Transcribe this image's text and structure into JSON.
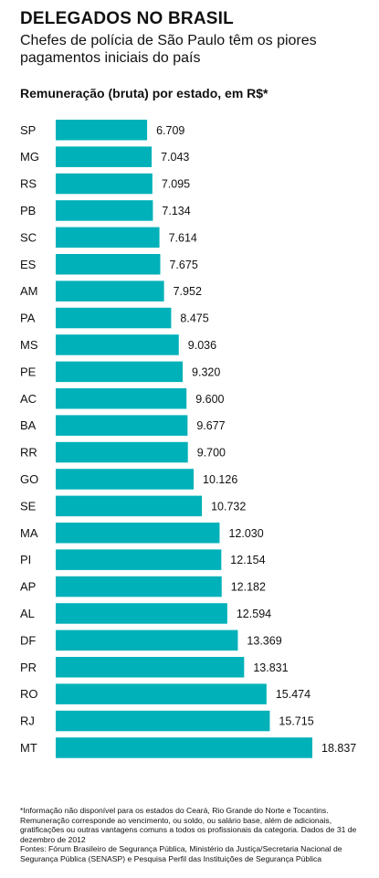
{
  "chart_data": {
    "type": "bar",
    "orientation": "horizontal",
    "title": "DELEGADOS NO BRASIL",
    "subtitle": "Chefes de polícia de São Paulo têm os piores pagamentos iniciais do país",
    "ylabel": "Remuneração (bruta) por estado, em R$*",
    "grid": false,
    "bar_color": "#00b1b9",
    "categories": [
      "SP",
      "MG",
      "RS",
      "PB",
      "SC",
      "ES",
      "AM",
      "PA",
      "MS",
      "PE",
      "AC",
      "BA",
      "RR",
      "GO",
      "SE",
      "MA",
      "PI",
      "AP",
      "AL",
      "DF",
      "PR",
      "RO",
      "RJ",
      "MT"
    ],
    "values": [
      6709,
      7043,
      7095,
      7134,
      7614,
      7675,
      7952,
      8475,
      9036,
      9320,
      9600,
      9677,
      9700,
      10126,
      10732,
      12030,
      12154,
      12182,
      12594,
      13369,
      13831,
      15474,
      15715,
      18837
    ],
    "value_labels": [
      "6.709",
      "7.043",
      "7.095",
      "7.134",
      "7.614",
      "7.675",
      "7.952",
      "8.475",
      "9.036",
      "9.320",
      "9.600",
      "9.677",
      "9.700",
      "10.126",
      "10.732",
      "12.030",
      "12.154",
      "12.182",
      "12.594",
      "13.369",
      "13.831",
      "15.474",
      "15.715",
      "18.837"
    ]
  },
  "footnote": {
    "note": "*Informação não disponível para os estados do Ceará, Rio Grande do Norte e Tocantins. Remuneração corresponde ao vencimento, ou soldo, ou salário base, além de adicionais, gratificações ou outras vantagens comuns a todos os profissionais da categoria. Dados de 31 de dezembro de 2012",
    "sources": "Fontes: Fórum Brasileiro de Segurança Pública, Ministério da Justiça/Secretaria Nacional de Segurança Pública (SENASP) e Pesquisa Perfil das Instituições de Segurança Pública"
  }
}
